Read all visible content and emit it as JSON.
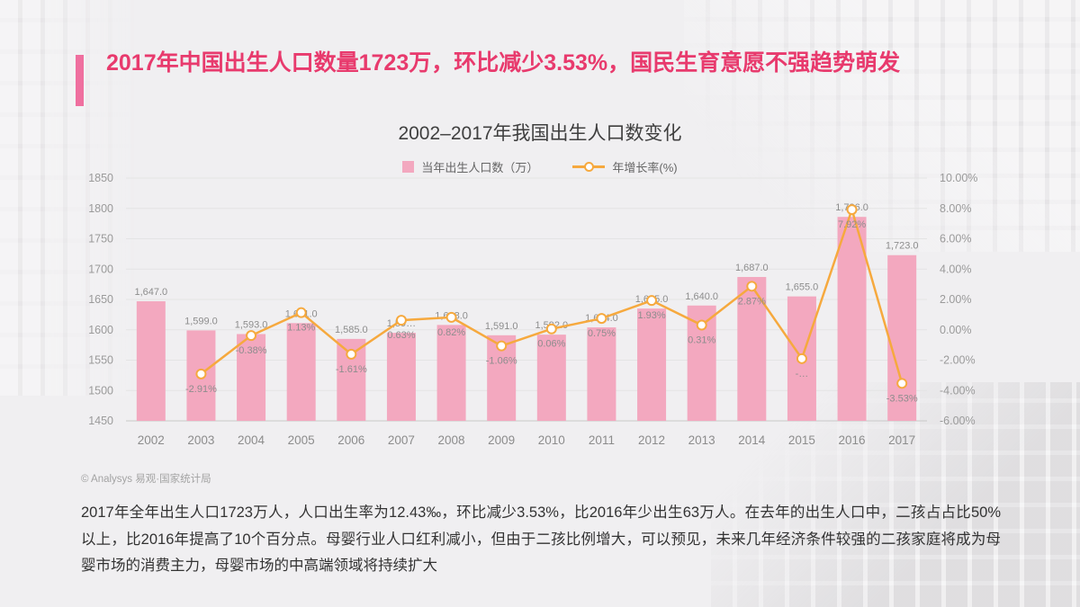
{
  "header": {
    "title": "2017年中国出生人口数量1723万，环比减少3.53%，国民生育意愿不强趋势萌发"
  },
  "chart_data": {
    "type": "bar",
    "title": "2002–2017年我国出生人口数变化",
    "categories": [
      "2002",
      "2003",
      "2004",
      "2005",
      "2006",
      "2007",
      "2008",
      "2009",
      "2010",
      "2011",
      "2012",
      "2013",
      "2014",
      "2015",
      "2016",
      "2017"
    ],
    "series": [
      {
        "name": "当年出生人口数（万）",
        "type": "bar",
        "axis": "left",
        "color": "#f3a8bf",
        "values": [
          1647,
          1599,
          1593,
          1611,
          1585,
          1595,
          1608,
          1591,
          1592,
          1604,
          1635,
          1640,
          1687,
          1655,
          1786,
          1723
        ],
        "labels": [
          "1,647.0",
          "1,599.0",
          "1,593.0",
          "1,611.0",
          "1,585.0",
          "1,59…",
          "1,608.0",
          "1,591.0",
          "1,592.0",
          "1,604.0",
          "1,635.0",
          "1,640.0",
          "1,687.0",
          "1,655.0",
          "1,786.0",
          "1,723.0"
        ]
      },
      {
        "name": "年增长率(%)",
        "type": "line",
        "axis": "right",
        "color": "#f6a93e",
        "x_start_index": 1,
        "values": [
          -2.91,
          -0.38,
          1.13,
          -1.61,
          0.63,
          0.82,
          -1.06,
          0.06,
          0.75,
          1.93,
          0.31,
          2.87,
          -1.9,
          7.92,
          -3.53
        ],
        "labels": [
          "-2.91%",
          "-0.38%",
          "1.13%",
          "-1.61%",
          "0.63%",
          "0.82%",
          "-1.06%",
          "0.06%",
          "0.75%",
          "1.93%",
          "0.31%",
          "2.87%",
          "-…",
          "7.92%",
          "-3.53%"
        ]
      }
    ],
    "left_axis": {
      "min": 1450,
      "max": 1850,
      "ticks": [
        "1850",
        "1800",
        "1750",
        "1700",
        "1650",
        "1600",
        "1550",
        "1500",
        "1450"
      ]
    },
    "right_axis": {
      "min": -6,
      "max": 10,
      "ticks": [
        "10.00%",
        "8.00%",
        "6.00%",
        "4.00%",
        "2.00%",
        "0.00%",
        "-2.00%",
        "-4.00%",
        "-6.00%"
      ]
    },
    "grid": true,
    "legend_position": "top"
  },
  "source": "© Analysys 易观·国家统计局",
  "paragraph": "2017年全年出生人口1723万人，人口出生率为12.43‰，环比减少3.53%，比2016年少出生63万人。在去年的出生人口中，二孩占占比50%以上，比2016年提高了10个百分点。母婴行业人口红利减小，但由于二孩比例增大，可以预见，未来几年经济条件较强的二孩家庭将成为母婴市场的消费主力，母婴市场的中高端领域将持续扩大",
  "colors": {
    "title_pink": "#e83a6d",
    "accent_bar_pink": "#ef6f9f",
    "bar_pink": "#f3a8bf",
    "line_orange": "#f6a93e",
    "background_gray": "#f0eff1"
  }
}
